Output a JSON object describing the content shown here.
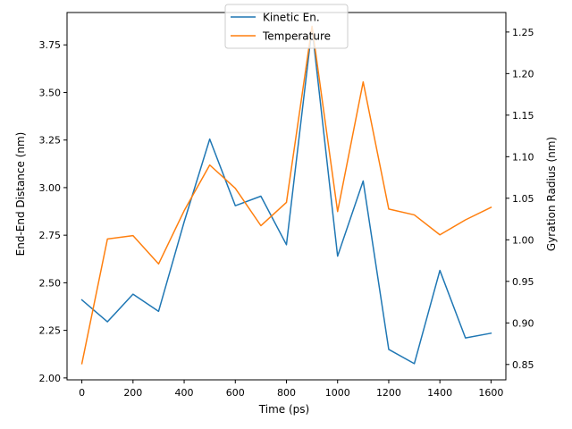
{
  "chart_data": {
    "type": "line",
    "xlabel": "Time (ps)",
    "ylabel_left": "End-End Distance (nm)",
    "ylabel_right": "Gyration Radius (nm)",
    "x": [
      0,
      100,
      200,
      300,
      400,
      500,
      600,
      700,
      800,
      900,
      1000,
      1100,
      1200,
      1300,
      1400,
      1500,
      1600
    ],
    "xlim": [
      -58,
      1658
    ],
    "ylim_left": [
      1.99,
      3.92
    ],
    "ylim_right": [
      0.8315,
      1.2735
    ],
    "x_ticks": [
      0,
      200,
      400,
      600,
      800,
      1000,
      1200,
      1400,
      1600
    ],
    "y_ticks_left": [
      2.0,
      2.25,
      2.5,
      2.75,
      3.0,
      3.25,
      3.5,
      3.75
    ],
    "y_ticks_right": [
      0.85,
      0.9,
      0.95,
      1.0,
      1.05,
      1.1,
      1.15,
      1.2,
      1.25
    ],
    "series": [
      {
        "name": "Kinetic En.",
        "axis": "left",
        "color": "#1f77b4",
        "values": [
          2.41,
          2.295,
          2.44,
          2.35,
          2.82,
          3.255,
          2.905,
          2.955,
          2.7,
          3.84,
          2.64,
          3.035,
          2.15,
          2.075,
          2.565,
          2.21,
          2.235
        ]
      },
      {
        "name": "Temperature",
        "axis": "right",
        "color": "#ff7f0e",
        "values": [
          0.851,
          1.001,
          1.005,
          0.971,
          1.035,
          1.09,
          1.062,
          1.017,
          1.045,
          1.257,
          1.034,
          1.19,
          1.037,
          1.03,
          1.006,
          1.024,
          1.039
        ]
      }
    ],
    "legend_position": "top-center",
    "grid": false
  }
}
